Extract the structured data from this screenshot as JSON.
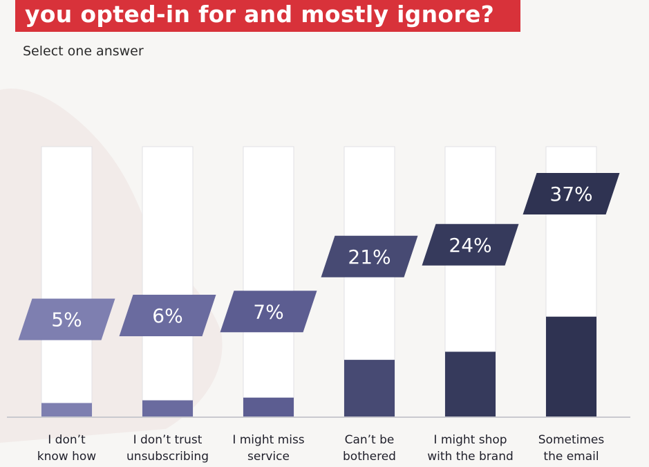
{
  "header": {
    "title": "you opted-in for and mostly ignore?",
    "subtitle": "Select one answer"
  },
  "colors": {
    "title_bg": "#d8323a",
    "bar_bg": "#ffffff",
    "bar_outline": "#e2e0e4",
    "axis": "#c9c9cf",
    "series": [
      "#7e7fb0",
      "#6a6b9f",
      "#5c5d91",
      "#474a73",
      "#363a5c",
      "#2f3352"
    ]
  },
  "chart_data": {
    "type": "bar",
    "categories": [
      "I don’t know how",
      "I don’t trust unsubscribing",
      "I might miss service",
      "Can’t be bothered",
      "I might shop with the brand",
      "Sometimes the email"
    ],
    "category_lines": [
      [
        "I don’t",
        "know how"
      ],
      [
        "I don’t trust",
        "unsubscribing"
      ],
      [
        "I might miss",
        "service"
      ],
      [
        "Can’t be",
        "bothered"
      ],
      [
        "I might shop",
        "with the brand"
      ],
      [
        "Sometimes",
        "the email"
      ]
    ],
    "values": [
      5,
      6,
      7,
      21,
      24,
      37
    ],
    "value_labels": [
      "5%",
      "6%",
      "7%",
      "21%",
      "24%",
      "37%"
    ],
    "unit": "%",
    "ylim": [
      0,
      100
    ],
    "grid": false,
    "legend": "none"
  }
}
